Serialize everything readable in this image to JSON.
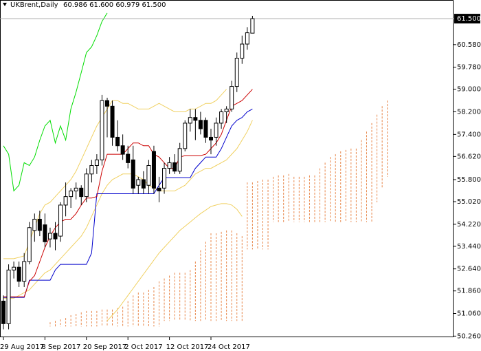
{
  "chart_data": {
    "type": "candlestick",
    "title": "UKBrent,Daily",
    "subtitle": "60.986 61.600 60.979 61.500",
    "categories": [
      "29 Aug 2017",
      null,
      null,
      null,
      null,
      null,
      null,
      null,
      "8 Sep 2017",
      null,
      null,
      null,
      null,
      null,
      null,
      null,
      "20 Sep 2017",
      null,
      null,
      null,
      null,
      null,
      null,
      null,
      "2 Oct 2017",
      null,
      null,
      null,
      null,
      null,
      null,
      null,
      "12 Oct 2017",
      null,
      null,
      null,
      null,
      null,
      null,
      null,
      "24 Oct 2017",
      null,
      null,
      null,
      null,
      null,
      null,
      null,
      null,
      null,
      null,
      null,
      null,
      null,
      null,
      null,
      null,
      null,
      null,
      null,
      null,
      null,
      null,
      null,
      null,
      null,
      null,
      null,
      null,
      null,
      null,
      null,
      null,
      null,
      null
    ],
    "open": [
      51.5,
      50.7,
      52.6,
      52.7,
      52.2,
      52.9,
      54.0,
      54.4,
      54.2,
      53.7,
      53.9,
      53.8,
      54.9,
      55.2,
      55.4,
      55.5,
      55.2,
      56.0,
      56.3,
      56.5,
      58.6,
      58.4,
      57.3,
      57.0,
      56.7,
      56.5,
      55.6,
      55.8,
      55.6,
      56.8,
      55.5,
      55.5,
      56.2,
      56.4,
      56.1,
      56.9,
      57.8,
      58.0,
      57.9,
      57.9,
      57.3,
      57.3,
      57.8,
      58.2,
      58.3,
      59.1,
      60.1,
      60.6,
      60.986,
      null,
      null,
      null,
      null,
      null,
      null,
      null,
      null,
      null,
      null,
      null,
      null,
      null,
      null,
      null,
      null,
      null,
      null,
      null,
      null,
      null,
      null,
      null,
      null,
      null,
      null
    ],
    "high": [
      51.7,
      52.8,
      52.9,
      52.9,
      53.2,
      54.3,
      54.6,
      54.7,
      54.6,
      54.1,
      54.3,
      55.0,
      55.7,
      55.5,
      55.7,
      55.6,
      56.2,
      56.5,
      56.7,
      58.8,
      58.7,
      58.6,
      57.9,
      57.4,
      57.0,
      57.0,
      55.9,
      56.1,
      56.5,
      57.0,
      55.9,
      56.4,
      56.6,
      56.7,
      57.1,
      57.9,
      58.3,
      58.3,
      58.2,
      58.0,
      57.6,
      58.0,
      58.3,
      58.4,
      59.3,
      60.3,
      60.9,
      61.2,
      61.6,
      null,
      null,
      null,
      null,
      null,
      null,
      null,
      null,
      null,
      null,
      null,
      null,
      null,
      null,
      null,
      null,
      null,
      null,
      null,
      null,
      null,
      null,
      null,
      null,
      null,
      null
    ],
    "low": [
      50.5,
      50.5,
      52.3,
      52.0,
      52.0,
      52.8,
      53.6,
      53.8,
      53.4,
      53.4,
      53.3,
      53.6,
      54.5,
      54.8,
      55.1,
      54.9,
      55.0,
      55.7,
      56.0,
      56.3,
      57.3,
      57.0,
      56.8,
      56.5,
      56.2,
      55.3,
      55.3,
      55.3,
      55.3,
      55.3,
      55.0,
      55.3,
      56.0,
      56.0,
      56.0,
      56.8,
      57.5,
      57.2,
      57.4,
      57.1,
      56.7,
      57.0,
      57.6,
      57.8,
      58.2,
      58.9,
      59.9,
      60.4,
      60.979,
      null,
      null,
      null,
      null,
      null,
      null,
      null,
      null,
      null,
      null,
      null,
      null,
      null,
      null,
      null,
      null,
      null,
      null,
      null,
      null,
      null,
      null,
      null,
      null,
      null,
      null
    ],
    "close": [
      50.7,
      52.6,
      52.7,
      52.2,
      52.9,
      54.1,
      54.4,
      54.0,
      53.6,
      53.9,
      53.7,
      54.9,
      55.2,
      55.4,
      55.5,
      55.2,
      56.0,
      56.3,
      56.5,
      58.6,
      58.4,
      57.3,
      57.0,
      56.7,
      56.4,
      55.5,
      55.8,
      55.5,
      56.3,
      55.5,
      55.4,
      56.2,
      56.4,
      56.1,
      56.9,
      57.8,
      58.0,
      57.9,
      57.6,
      57.3,
      57.2,
      57.8,
      58.2,
      58.3,
      59.1,
      60.1,
      60.6,
      61.0,
      61.5,
      null,
      null,
      null,
      null,
      null,
      null,
      null,
      null,
      null,
      null,
      null,
      null,
      null,
      null,
      null,
      null,
      null,
      null,
      null,
      null,
      null,
      null,
      null,
      null,
      null,
      null
    ],
    "up_color": "#ffffff",
    "down_color": "#000000",
    "series": [
      {
        "color": "#f0d060",
        "values": [
          53.0,
          53.0,
          53.0,
          53.05,
          53.1,
          53.6,
          54.1,
          54.6,
          54.9,
          55.0,
          55.2,
          55.4,
          55.6,
          55.8,
          56.1,
          56.5,
          56.9,
          57.3,
          57.7,
          58.0,
          58.3,
          58.6,
          58.6,
          58.5,
          58.5,
          58.4,
          58.3,
          58.3,
          58.3,
          58.4,
          58.5,
          58.4,
          58.3,
          58.2,
          58.2,
          58.2,
          58.3,
          58.3,
          58.4,
          58.5,
          58.5,
          58.6,
          58.8,
          59.0,
          null,
          null,
          null,
          null,
          null,
          null,
          null,
          null,
          null,
          null,
          null,
          null,
          null,
          null,
          null,
          null,
          null,
          null,
          null,
          null,
          null,
          null,
          null,
          null,
          null,
          null,
          null,
          null,
          null,
          null,
          null
        ]
      },
      {
        "color": "#f0d060",
        "values": [
          51.6,
          51.6,
          51.6,
          51.7,
          51.8,
          51.9,
          52.1,
          52.3,
          52.5,
          52.6,
          52.8,
          53.0,
          53.2,
          53.4,
          53.6,
          53.8,
          54.1,
          54.5,
          54.9,
          55.3,
          55.6,
          55.8,
          55.9,
          56.0,
          56.0,
          56.0,
          55.9,
          55.8,
          55.6,
          55.5,
          55.4,
          55.4,
          55.4,
          55.4,
          55.5,
          55.6,
          55.8,
          56.0,
          56.1,
          56.2,
          56.2,
          56.3,
          56.4,
          56.5,
          56.7,
          56.9,
          57.2,
          57.5,
          57.9,
          null,
          null,
          null,
          null,
          null,
          null,
          null,
          null,
          null,
          null,
          null,
          null,
          null,
          null,
          null,
          null,
          null,
          null,
          null,
          null,
          null,
          null,
          null,
          null,
          null,
          null
        ]
      },
      {
        "color": "#f0d060",
        "values": [
          null,
          null,
          null,
          null,
          null,
          null,
          null,
          null,
          null,
          null,
          null,
          null,
          null,
          null,
          null,
          null,
          null,
          null,
          null,
          null,
          50.8,
          51.0,
          51.2,
          51.45,
          51.7,
          51.95,
          52.2,
          52.45,
          52.7,
          52.95,
          53.2,
          53.4,
          53.6,
          53.8,
          54.0,
          54.15,
          54.3,
          54.45,
          54.6,
          54.72,
          54.85,
          54.9,
          54.95,
          54.95,
          54.9,
          54.75,
          54.5,
          null,
          null,
          null,
          null,
          null,
          null,
          null,
          null,
          null,
          null,
          null,
          null,
          null,
          null,
          null,
          null,
          null,
          null,
          null,
          null,
          null,
          null,
          null,
          null,
          null,
          null,
          null,
          null
        ]
      },
      {
        "color": "#00dd00",
        "values": [
          57.0,
          56.7,
          55.4,
          55.6,
          56.4,
          56.3,
          56.6,
          57.2,
          57.7,
          57.9,
          57.1,
          57.7,
          57.2,
          58.3,
          58.9,
          59.6,
          60.3,
          60.5,
          60.9,
          61.4,
          61.7,
          null,
          null,
          null,
          null,
          null,
          null,
          null,
          null,
          null,
          null,
          null,
          null,
          null,
          null,
          null,
          null,
          null,
          null,
          null,
          null,
          null,
          null,
          null,
          null,
          null,
          null,
          null,
          null,
          null,
          null,
          null,
          null,
          null,
          null,
          null,
          null,
          null,
          null,
          null,
          null,
          null,
          null,
          null,
          null,
          null,
          null,
          null,
          null,
          null,
          null,
          null,
          null,
          null,
          null
        ]
      },
      {
        "color": "#0000cc",
        "values": [
          51.63,
          51.63,
          51.63,
          51.63,
          51.63,
          52.24,
          52.24,
          52.24,
          52.24,
          52.24,
          52.6,
          52.8,
          52.8,
          52.8,
          52.8,
          52.8,
          52.8,
          53.2,
          55.3,
          55.3,
          55.3,
          55.3,
          55.3,
          55.3,
          55.3,
          55.3,
          55.3,
          55.3,
          55.3,
          55.3,
          55.6,
          55.87,
          55.87,
          55.87,
          55.87,
          55.87,
          55.87,
          56.2,
          56.4,
          56.6,
          56.6,
          56.6,
          56.9,
          57.3,
          57.7,
          57.9,
          58.0,
          58.2,
          58.3,
          null,
          null,
          null,
          null,
          null,
          null,
          null,
          null,
          null,
          null,
          null,
          null,
          null,
          null,
          null,
          null,
          null,
          null,
          null,
          null,
          null,
          null,
          null,
          null,
          null,
          null
        ]
      },
      {
        "color": "#cc0000",
        "values": [
          51.65,
          51.65,
          51.65,
          51.65,
          51.65,
          52.2,
          52.4,
          52.9,
          53.4,
          53.8,
          54.1,
          54.3,
          54.4,
          54.4,
          54.6,
          54.9,
          55.15,
          55.15,
          55.2,
          56.1,
          56.7,
          56.7,
          56.7,
          56.7,
          56.9,
          57.1,
          57.1,
          57.0,
          57.0,
          56.7,
          56.6,
          56.4,
          56.2,
          56.2,
          56.6,
          56.65,
          56.65,
          56.65,
          56.65,
          56.7,
          56.9,
          57.1,
          57.4,
          57.9,
          58.4,
          58.5,
          58.6,
          58.8,
          59.0,
          null,
          null,
          null,
          null,
          null,
          null,
          null,
          null,
          null,
          null,
          null,
          null,
          null,
          null,
          null,
          null,
          null,
          null,
          null,
          null,
          null,
          null,
          null,
          null,
          null,
          null
        ]
      }
    ],
    "cloud": {
      "color": "#e8874a",
      "span_a": [
        null,
        null,
        null,
        null,
        null,
        null,
        null,
        null,
        null,
        50.75,
        50.8,
        50.85,
        50.9,
        51.0,
        51.05,
        51.1,
        51.15,
        51.15,
        51.15,
        51.2,
        51.2,
        51.2,
        51.25,
        51.3,
        51.5,
        51.7,
        51.8,
        51.8,
        51.9,
        52.0,
        52.2,
        52.3,
        52.4,
        52.5,
        52.5,
        52.5,
        52.6,
        52.9,
        53.3,
        53.6,
        53.9,
        53.9,
        53.95,
        54.0,
        54.0,
        53.9,
        53.8,
        55.7,
        55.7,
        55.75,
        55.8,
        55.8,
        55.9,
        55.95,
        55.95,
        56.0,
        55.9,
        55.9,
        55.9,
        55.95,
        55.95,
        56.2,
        56.4,
        56.6,
        56.7,
        56.8,
        56.85,
        56.9,
        56.9,
        57.2,
        57.5,
        57.8,
        58.1,
        58.4,
        58.6
      ],
      "span_b": [
        null,
        null,
        null,
        null,
        null,
        null,
        null,
        null,
        null,
        50.6,
        50.6,
        50.6,
        50.6,
        50.6,
        50.6,
        50.6,
        50.6,
        50.6,
        50.6,
        50.6,
        50.6,
        50.6,
        50.6,
        50.6,
        50.6,
        50.6,
        50.6,
        50.6,
        50.6,
        50.6,
        50.6,
        50.8,
        50.8,
        50.8,
        50.8,
        50.8,
        50.8,
        50.8,
        50.8,
        50.8,
        50.8,
        50.8,
        50.8,
        50.8,
        50.8,
        50.8,
        50.8,
        53.33,
        53.33,
        53.33,
        53.33,
        53.33,
        54.3,
        54.3,
        54.3,
        54.3,
        54.3,
        54.3,
        54.3,
        54.3,
        54.3,
        54.3,
        54.3,
        54.3,
        54.3,
        54.3,
        54.3,
        54.3,
        54.3,
        54.3,
        54.3,
        54.3,
        55.0,
        55.5,
        55.9
      ]
    },
    "last_price": {
      "value": 61.5,
      "label": "61.500"
    },
    "ylim": [
      50.22,
      62.16
    ],
    "yticks": [
      {
        "value": 50.26,
        "label": "50.260"
      },
      {
        "value": 51.06,
        "label": "51.060"
      },
      {
        "value": 51.86,
        "label": "51.860"
      },
      {
        "value": 52.64,
        "label": "52.640"
      },
      {
        "value": 53.44,
        "label": "53.440"
      },
      {
        "value": 54.22,
        "label": "54.220"
      },
      {
        "value": 55.02,
        "label": "55.020"
      },
      {
        "value": 55.8,
        "label": "55.800"
      },
      {
        "value": 56.62,
        "label": "56.620"
      },
      {
        "value": 57.4,
        "label": "57.400"
      },
      {
        "value": 58.2,
        "label": "58.200"
      },
      {
        "value": 59.0,
        "label": "59.000"
      },
      {
        "value": 59.78,
        "label": "59.780"
      },
      {
        "value": 60.58,
        "label": "60.580"
      }
    ]
  }
}
